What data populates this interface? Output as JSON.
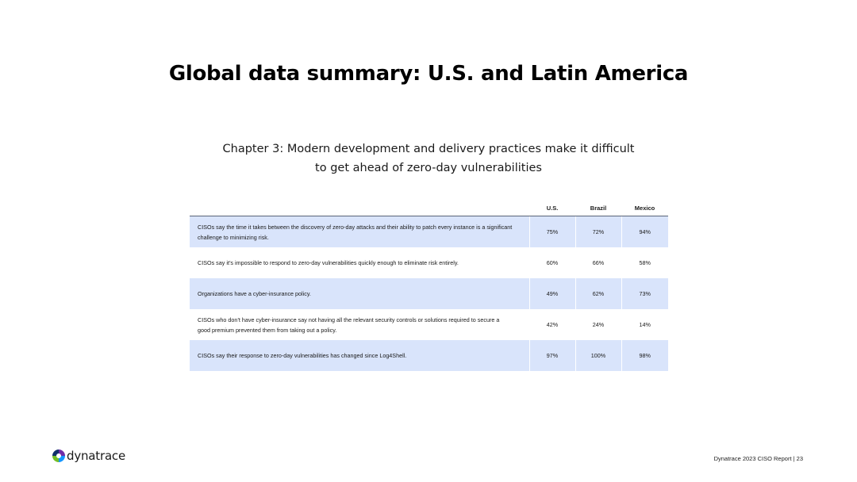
{
  "page": {
    "title": "Global data summary: U.S. and Latin America",
    "subtitle_lines": [
      "Chapter 3: Modern development and delivery practices make it difficult",
      "to get ahead of zero-day vulnerabilities"
    ]
  },
  "table": {
    "headers": [
      "",
      "U.S.",
      "Brazil",
      "Mexico"
    ],
    "rows": [
      {
        "label": "CISOs say the time it takes between the discovery of zero-day attacks and their ability to patch every instance is a significant challenge to minimizing risk.",
        "values": [
          "75%",
          "72%",
          "94%"
        ]
      },
      {
        "label": "CISOs say it’s impossible to respond to zero-day vulnerabilities quickly enough to eliminate risk entirely.",
        "values": [
          "60%",
          "66%",
          "58%"
        ]
      },
      {
        "label": "Organizations have a cyber-insurance policy.",
        "values": [
          "49%",
          "62%",
          "73%"
        ]
      },
      {
        "label": "CISOs who don’t have cyber-insurance say not having all the relevant security controls or solutions required to secure a good premium prevented them from taking out a policy.",
        "values": [
          "42%",
          "24%",
          "14%"
        ]
      },
      {
        "label": "CISOs say their response to zero-day vulnerabilities has changed since Log4Shell.",
        "values": [
          "97%",
          "100%",
          "98%"
        ]
      }
    ],
    "colors": {
      "shaded_row": "#d9e4fb",
      "header_rule": "#5b6478"
    }
  },
  "footer": {
    "logo_text": "dynatrace",
    "logo_icon": "dynatrace-logo-icon",
    "note": "Dynatrace 2023 CISO Report | 23"
  }
}
